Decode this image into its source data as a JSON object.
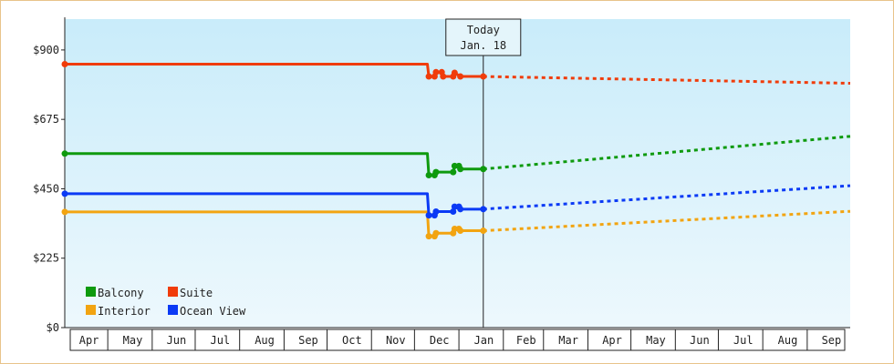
{
  "chart_data": {
    "type": "line",
    "title": "",
    "xlabel": "",
    "ylabel": "",
    "x_range": [
      "2022-04-01",
      "2023-10-01"
    ],
    "ylim": [
      0,
      1000
    ],
    "y_ticks": [
      {
        "value": 0,
        "label": "$0"
      },
      {
        "value": 225,
        "label": "$225"
      },
      {
        "value": 450,
        "label": "$450"
      },
      {
        "value": 675,
        "label": "$675"
      },
      {
        "value": 900,
        "label": "$900"
      }
    ],
    "x_ticks": [
      "Apr",
      "May",
      "Jun",
      "Jul",
      "Aug",
      "Sep",
      "Oct",
      "Nov",
      "Dec",
      "Jan",
      "Feb",
      "Mar",
      "Apr",
      "May",
      "Jun",
      "Jul",
      "Aug",
      "Sep"
    ],
    "today_marker": {
      "line1": "Today",
      "line2": "Jan. 18",
      "date": "2023-01-18"
    },
    "background_gradient": [
      "#c9ecfa",
      "#edf8fd"
    ],
    "legend_position": "bottom-left",
    "series": [
      {
        "name": "Balcony",
        "color": "#0e9a0e",
        "history": [
          [
            "2022-04-01",
            564
          ],
          [
            "2022-12-10",
            564
          ],
          [
            "2022-12-11",
            494
          ],
          [
            "2022-12-15",
            494
          ],
          [
            "2022-12-16",
            504
          ],
          [
            "2022-12-28",
            504
          ],
          [
            "2022-12-29",
            524
          ],
          [
            "2023-01-01",
            524
          ],
          [
            "2023-01-02",
            514
          ],
          [
            "2023-01-18",
            514
          ]
        ],
        "forecast": [
          [
            "2023-01-18",
            514
          ],
          [
            "2023-10-01",
            620
          ]
        ]
      },
      {
        "name": "Suite",
        "color": "#f03c0a",
        "history": [
          [
            "2022-04-01",
            854
          ],
          [
            "2022-12-10",
            854
          ],
          [
            "2022-12-11",
            814
          ],
          [
            "2022-12-15",
            814
          ],
          [
            "2022-12-16",
            828
          ],
          [
            "2022-12-20",
            828
          ],
          [
            "2022-12-21",
            814
          ],
          [
            "2022-12-28",
            814
          ],
          [
            "2022-12-29",
            826
          ],
          [
            "2023-01-02",
            814
          ],
          [
            "2023-01-18",
            814
          ]
        ],
        "forecast": [
          [
            "2023-01-18",
            814
          ],
          [
            "2023-10-01",
            792
          ]
        ]
      },
      {
        "name": "Interior",
        "color": "#f2a411",
        "history": [
          [
            "2022-04-01",
            375
          ],
          [
            "2022-12-10",
            375
          ],
          [
            "2022-12-11",
            296
          ],
          [
            "2022-12-15",
            296
          ],
          [
            "2022-12-16",
            306
          ],
          [
            "2022-12-28",
            306
          ],
          [
            "2022-12-29",
            320
          ],
          [
            "2023-01-01",
            320
          ],
          [
            "2023-01-02",
            314
          ],
          [
            "2023-01-18",
            314
          ]
        ],
        "forecast": [
          [
            "2023-01-18",
            314
          ],
          [
            "2023-10-01",
            377
          ]
        ]
      },
      {
        "name": "Ocean View",
        "color": "#0b3af5",
        "history": [
          [
            "2022-04-01",
            434
          ],
          [
            "2022-12-10",
            434
          ],
          [
            "2022-12-11",
            364
          ],
          [
            "2022-12-15",
            364
          ],
          [
            "2022-12-16",
            376
          ],
          [
            "2022-12-28",
            376
          ],
          [
            "2022-12-29",
            392
          ],
          [
            "2023-01-01",
            392
          ],
          [
            "2023-01-02",
            384
          ],
          [
            "2023-01-18",
            384
          ]
        ],
        "forecast": [
          [
            "2023-01-18",
            384
          ],
          [
            "2023-10-01",
            460
          ]
        ]
      }
    ]
  }
}
